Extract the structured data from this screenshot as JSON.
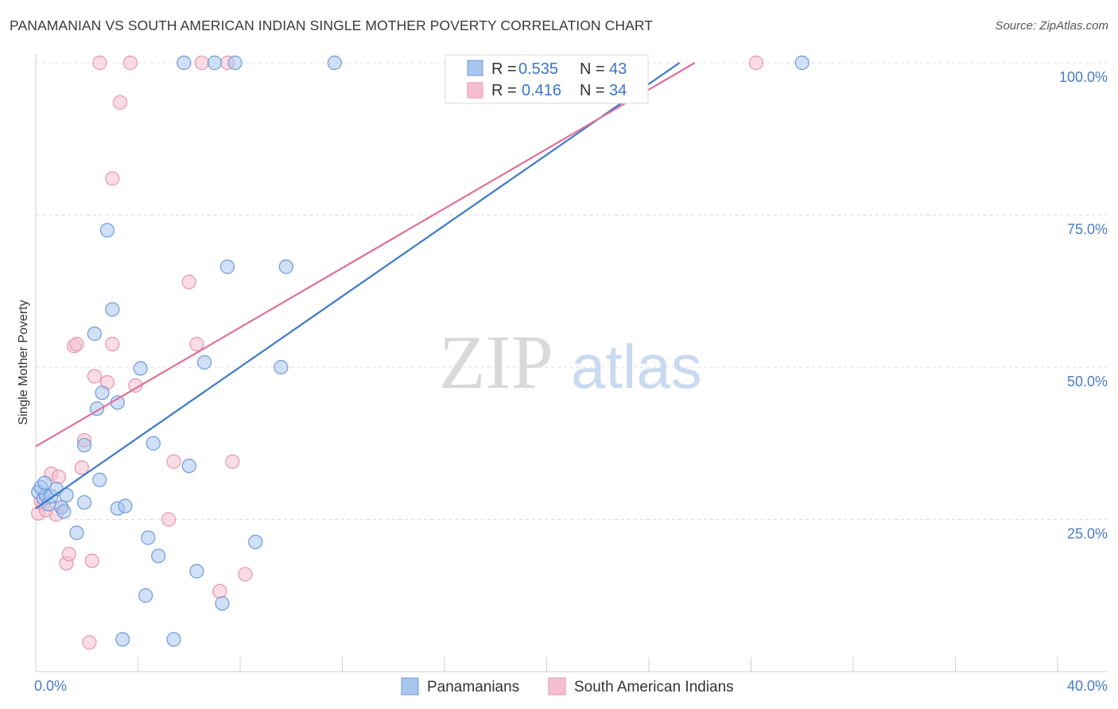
{
  "header": {
    "title": "PANAMANIAN VS SOUTH AMERICAN INDIAN SINGLE MOTHER POVERTY CORRELATION CHART",
    "source": "Source: ZipAtlas.com"
  },
  "watermark": {
    "zip": "ZIP",
    "atlas": "atlas"
  },
  "legend": {
    "r_label": "R =",
    "n_label": "N =",
    "rows": [
      {
        "r": "0.535",
        "n": "43"
      },
      {
        "r": "0.416",
        "n": "34"
      }
    ]
  },
  "colors": {
    "blue_fill": "#a9c6ef",
    "blue_stroke": "#6f9ad8",
    "blue_line": "#3b78c9",
    "pink_fill": "#f6bfd0",
    "pink_stroke": "#e894b1",
    "pink_line": "#e0709a",
    "tick_text": "#4a7bc8"
  },
  "chart_data": {
    "type": "scatter",
    "title": "PANAMANIAN VS SOUTH AMERICAN INDIAN SINGLE MOTHER POVERTY CORRELATION CHART",
    "xlabel": "",
    "ylabel": "Single Mother Poverty",
    "xlim": [
      0,
      40
    ],
    "ylim": [
      0,
      100
    ],
    "x_tick_labels": [
      "0.0%",
      "40.0%"
    ],
    "y_tick_labels": [
      "100.0%",
      "75.0%",
      "50.0%",
      "25.0%"
    ],
    "y_ticks": [
      100,
      75,
      50,
      25
    ],
    "grid": true,
    "legend_position": "top-center",
    "series": [
      {
        "name": "Panamanians",
        "r": 0.535,
        "n": 43,
        "trend": {
          "x": [
            0,
            25.2
          ],
          "y": [
            26.8,
            100
          ]
        },
        "points": [
          [
            0.1,
            29.5
          ],
          [
            0.3,
            28.5
          ],
          [
            0.4,
            29.0
          ],
          [
            0.5,
            27.5
          ],
          [
            0.6,
            28.8
          ],
          [
            0.8,
            30.0
          ],
          [
            1.0,
            27.0
          ],
          [
            1.1,
            26.3
          ],
          [
            1.2,
            29.0
          ],
          [
            1.6,
            22.8
          ],
          [
            1.9,
            27.8
          ],
          [
            1.9,
            37.2
          ],
          [
            2.3,
            55.5
          ],
          [
            2.4,
            43.2
          ],
          [
            2.5,
            31.5
          ],
          [
            2.6,
            45.8
          ],
          [
            2.8,
            72.5
          ],
          [
            3.0,
            59.5
          ],
          [
            3.2,
            26.8
          ],
          [
            3.2,
            44.2
          ],
          [
            3.4,
            5.3
          ],
          [
            3.5,
            27.2
          ],
          [
            4.1,
            49.8
          ],
          [
            4.3,
            12.5
          ],
          [
            4.4,
            22.0
          ],
          [
            4.6,
            37.5
          ],
          [
            4.8,
            19.0
          ],
          [
            5.4,
            5.3
          ],
          [
            5.8,
            100
          ],
          [
            6.0,
            33.8
          ],
          [
            6.3,
            16.5
          ],
          [
            6.6,
            50.8
          ],
          [
            7.0,
            100
          ],
          [
            7.3,
            11.2
          ],
          [
            7.5,
            66.5
          ],
          [
            7.8,
            100
          ],
          [
            8.6,
            21.3
          ],
          [
            9.6,
            50.0
          ],
          [
            9.8,
            66.5
          ],
          [
            11.7,
            100
          ],
          [
            30.0,
            100
          ],
          [
            0.2,
            30.3
          ],
          [
            0.35,
            31.0
          ]
        ]
      },
      {
        "name": "South American Indians",
        "r": 0.416,
        "n": 34,
        "trend": {
          "x": [
            0,
            25.8
          ],
          "y": [
            37,
            100
          ]
        },
        "points": [
          [
            0.1,
            26.0
          ],
          [
            0.3,
            27.5
          ],
          [
            0.6,
            32.5
          ],
          [
            0.8,
            25.8
          ],
          [
            0.9,
            32.0
          ],
          [
            1.0,
            27.0
          ],
          [
            1.2,
            17.8
          ],
          [
            1.3,
            19.3
          ],
          [
            1.5,
            53.5
          ],
          [
            1.6,
            53.8
          ],
          [
            1.8,
            33.5
          ],
          [
            1.9,
            38.0
          ],
          [
            2.1,
            4.8
          ],
          [
            2.2,
            18.2
          ],
          [
            2.3,
            48.5
          ],
          [
            2.5,
            100
          ],
          [
            2.8,
            47.5
          ],
          [
            3.0,
            81.0
          ],
          [
            3.0,
            53.8
          ],
          [
            3.3,
            93.5
          ],
          [
            3.7,
            100
          ],
          [
            3.9,
            47.0
          ],
          [
            5.2,
            25.0
          ],
          [
            5.4,
            34.5
          ],
          [
            6.0,
            64.0
          ],
          [
            6.3,
            53.8
          ],
          [
            6.5,
            100
          ],
          [
            7.2,
            13.2
          ],
          [
            7.5,
            100
          ],
          [
            7.7,
            34.5
          ],
          [
            8.2,
            16.0
          ],
          [
            28.2,
            100
          ],
          [
            0.4,
            26.5
          ],
          [
            0.2,
            28.0
          ]
        ]
      }
    ]
  },
  "bottom_legend": [
    {
      "label": "Panamanians"
    },
    {
      "label": "South American Indians"
    }
  ]
}
